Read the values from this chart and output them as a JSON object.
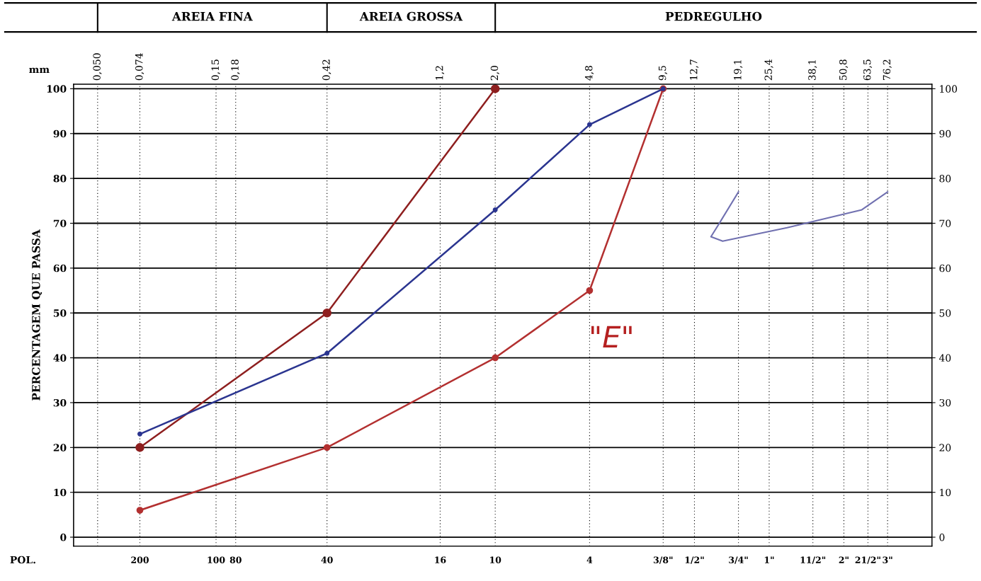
{
  "chart_data": {
    "type": "line",
    "ylabel": "PERCENTAGEM QUE PASSA",
    "xlabel": "mm",
    "annotations": [
      "AREIA FINA",
      "AREIA GROSSA",
      "PEDREGULHO",
      "\"E\"",
      "POL.",
      "200",
      "100",
      "80",
      "40",
      "16",
      "10",
      "4",
      "3/8\"",
      "1/2\"",
      "3/4\"",
      "1\"",
      "11/2\"",
      "2\"",
      "21/2\"",
      "3\""
    ],
    "log": "x",
    "xlim": [
      0.04,
      115
    ],
    "ylim": [
      -2,
      101
    ],
    "y2lim": [
      -2,
      101
    ],
    "xticks": [
      {
        "value": 0.05,
        "label": "0,050"
      },
      {
        "value": 0.074,
        "label": "0,074"
      },
      {
        "value": 0.15,
        "label": "0,15"
      },
      {
        "value": 0.18,
        "label": "0,18"
      },
      {
        "value": 0.42,
        "label": "0,42"
      },
      {
        "value": 1.2,
        "label": "1,2"
      },
      {
        "value": 2.0,
        "label": "2,0"
      },
      {
        "value": 4.8,
        "label": "4,8"
      },
      {
        "value": 9.5,
        "label": "9,5"
      },
      {
        "value": 12.7,
        "label": "12,7"
      },
      {
        "value": 19.1,
        "label": "19,1"
      },
      {
        "value": 25.4,
        "label": "25,4"
      },
      {
        "value": 38.1,
        "label": "38,1"
      },
      {
        "value": 50.8,
        "label": "50,8"
      },
      {
        "value": 63.5,
        "label": "63,5"
      },
      {
        "value": 76.2,
        "label": "76,2"
      }
    ],
    "yticks": [
      0,
      10,
      20,
      30,
      40,
      50,
      60,
      70,
      80,
      90,
      100
    ],
    "y2ticks": [
      0,
      10,
      20,
      30,
      40,
      50,
      60,
      70,
      80,
      90,
      100
    ],
    "grid": true,
    "marker": "circle",
    "line_style": "solid",
    "series": [
      {
        "color": "#8e1f1f",
        "x": [
          0.074,
          0.42,
          2.0
        ],
        "values": [
          20,
          50,
          100
        ]
      },
      {
        "color": "#b33030",
        "x": [
          0.074,
          0.42,
          2.0,
          4.8,
          9.5
        ],
        "values": [
          6,
          20,
          40,
          55,
          100
        ]
      },
      {
        "color": "#2b3590",
        "x": [
          0.074,
          0.42,
          2.0,
          4.8,
          9.5
        ],
        "values": [
          23,
          41,
          73,
          92,
          100
        ]
      }
    ]
  }
}
